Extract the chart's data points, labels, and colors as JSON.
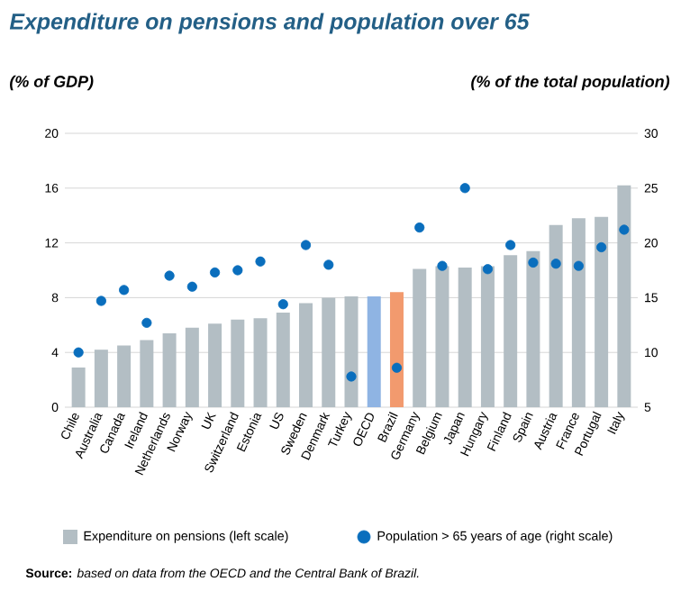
{
  "chart_data": {
    "type": "bar",
    "title": "Expenditure on pensions and population over 65",
    "ylabel": "(% of GDP)",
    "y2label": "(% of the total population)",
    "categories": [
      "Chile",
      "Australia",
      "Canada",
      "Ireland",
      "Netherlands",
      "Norway",
      "UK",
      "Switzerland",
      "Estonia",
      "US",
      "Sweden",
      "Denmark",
      "Turkey",
      "OECD",
      "Brazil",
      "Germany",
      "Belgium",
      "Japan",
      "Hungary",
      "Finland",
      "Spain",
      "Austria",
      "France",
      "Portugal",
      "Italy"
    ],
    "series": [
      {
        "name": "Expenditure on pensions (left scale)",
        "color": "#b3bec4",
        "colors": [
          "#b3bec4",
          "#b3bec4",
          "#b3bec4",
          "#b3bec4",
          "#b3bec4",
          "#b3bec4",
          "#b3bec4",
          "#b3bec4",
          "#b3bec4",
          "#b3bec4",
          "#b3bec4",
          "#b3bec4",
          "#b3bec4",
          "#8fb4e3",
          "#f29a6e",
          "#b3bec4",
          "#b3bec4",
          "#b3bec4",
          "#b3bec4",
          "#b3bec4",
          "#b3bec4",
          "#b3bec4",
          "#b3bec4",
          "#b3bec4",
          "#b3bec4"
        ],
        "values": [
          2.9,
          4.2,
          4.5,
          4.9,
          5.4,
          5.8,
          6.1,
          6.4,
          6.5,
          6.9,
          7.6,
          8.0,
          8.1,
          8.1,
          8.4,
          10.1,
          10.3,
          10.2,
          10.3,
          11.1,
          11.4,
          13.3,
          13.8,
          13.9,
          16.2
        ]
      },
      {
        "name": "Population > 65 years of age (right scale)",
        "type": "scatter",
        "axis": "y2",
        "color": "#0a6ebd",
        "marker": "circle",
        "values": [
          10.0,
          14.7,
          15.7,
          12.7,
          17.0,
          16.0,
          17.3,
          17.5,
          18.3,
          14.4,
          19.8,
          18.0,
          7.8,
          null,
          8.6,
          21.4,
          17.9,
          25.0,
          17.6,
          19.8,
          18.2,
          18.1,
          17.9,
          19.6,
          21.2
        ]
      }
    ],
    "ylim": [
      0,
      20
    ],
    "yticks": [
      0,
      4,
      8,
      12,
      16,
      20
    ],
    "y2lim": [
      5,
      30
    ],
    "y2ticks": [
      5,
      10,
      15,
      20,
      25,
      30
    ],
    "grid": "y",
    "legend": "bottom",
    "annotations": [
      "**Source:** *based on data from the OECD and the Central Bank of Brazil.*"
    ]
  }
}
